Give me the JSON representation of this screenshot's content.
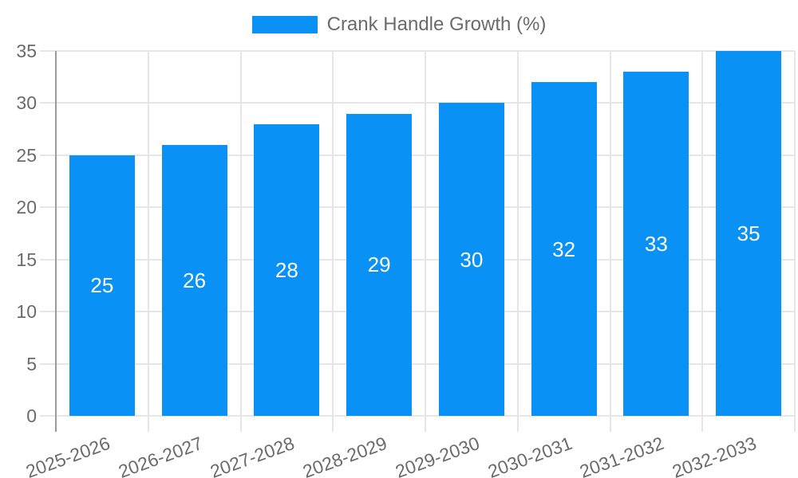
{
  "chart_data": {
    "type": "bar",
    "title": "Crank Handle Growth (%)",
    "categories": [
      "2025-2026",
      "2026-2027",
      "2027-2028",
      "2028-2029",
      "2029-2030",
      "2030-2031",
      "2031-2032",
      "2032-2033"
    ],
    "values": [
      25,
      26,
      28,
      29,
      30,
      32,
      33,
      35
    ],
    "y_ticks": [
      0,
      5,
      10,
      15,
      20,
      25,
      30,
      35
    ],
    "ylim": [
      0,
      35
    ],
    "xlabel": "",
    "ylabel": "",
    "grid": true,
    "legend_position": "top-center",
    "value_labels": "centered-inside-bars",
    "colors": {
      "bar": "#0a91f5",
      "grid": "#e6e6e6",
      "axis": "#9b9b9b",
      "tick_text": "#6b6b6b",
      "value_label": "#ffffff"
    }
  }
}
